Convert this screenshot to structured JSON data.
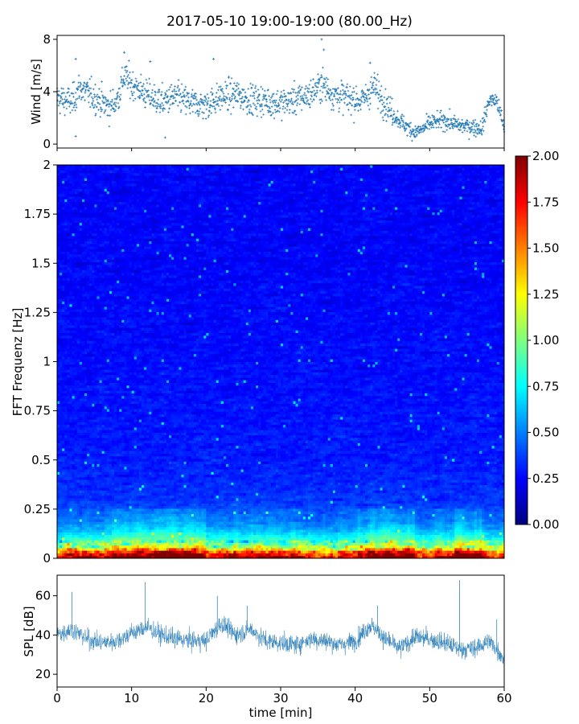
{
  "title": "2017-05-10 19:00-19:00 (80.00_Hz)",
  "colors": {
    "series": "#1f77b4",
    "colormap": [
      "#00007f",
      "#0000ff",
      "#007fff",
      "#00ffff",
      "#7fff7f",
      "#ffff00",
      "#ff7f00",
      "#ff0000",
      "#7f0000"
    ]
  },
  "chart_data": [
    {
      "type": "scatter",
      "name": "wind",
      "ylabel": "Wind [m/s]",
      "xlim": [
        0,
        60
      ],
      "ylim": [
        -0.3,
        8.3
      ],
      "yticks": [
        0,
        4,
        8
      ],
      "xticks": [
        0,
        10,
        20,
        30,
        40,
        50,
        60
      ],
      "marker": "+",
      "trend": {
        "x": [
          0,
          2,
          3,
          5,
          7,
          8,
          9,
          10,
          12,
          14,
          16,
          18,
          20,
          22,
          24,
          26,
          28,
          30,
          32,
          34,
          35.5,
          37,
          39,
          41,
          42.5,
          44,
          45,
          46,
          47,
          48,
          49,
          50,
          52,
          54,
          56,
          57,
          58,
          59,
          60
        ],
        "y": [
          3.5,
          3.2,
          4.3,
          3.6,
          2.8,
          3.3,
          5.2,
          4.6,
          3.8,
          3.2,
          3.6,
          3.1,
          3.0,
          3.6,
          3.8,
          3.4,
          3.3,
          3.1,
          3.4,
          3.8,
          4.6,
          3.8,
          3.5,
          3.3,
          4.4,
          3.2,
          2.3,
          1.8,
          1.3,
          0.9,
          1.1,
          1.6,
          1.8,
          1.4,
          1.3,
          1.2,
          3.4,
          3.3,
          1.2
        ]
      },
      "spikes": [
        [
          2.5,
          6.5
        ],
        [
          9,
          7.0
        ],
        [
          12.5,
          6.3
        ],
        [
          21,
          6.5
        ],
        [
          35.5,
          8.0
        ],
        [
          35.8,
          7.2
        ],
        [
          42,
          6.2
        ],
        [
          14.5,
          0.5
        ],
        [
          2.5,
          0.6
        ]
      ]
    },
    {
      "type": "heatmap",
      "name": "spectrogram",
      "ylabel": "FFT Frequenz [Hz]",
      "xlim": [
        0,
        60
      ],
      "ylim": [
        0,
        2
      ],
      "yticks": [
        0,
        0.25,
        0.5,
        0.75,
        1,
        1.25,
        1.5,
        1.75,
        2
      ],
      "ytick_labels": [
        "0",
        "0.25",
        "0.5",
        "0.75",
        "1",
        "1.25",
        "1.5",
        "1.75",
        "2"
      ],
      "colorbar": {
        "range": [
          0,
          2
        ],
        "ticks": [
          0.0,
          0.25,
          0.5,
          0.75,
          1.0,
          1.25,
          1.5,
          1.75,
          2.0
        ],
        "tick_labels": [
          "0.00",
          "0.25",
          "0.50",
          "0.75",
          "1.00",
          "1.25",
          "1.50",
          "1.75",
          "2.00"
        ]
      },
      "rows": 150,
      "cols": 180,
      "profile": {
        "freq_hz": [
          0,
          0.03,
          0.06,
          0.1,
          0.15,
          0.2,
          0.3,
          0.5,
          1.0,
          1.5,
          2.0
        ],
        "mean_amplitude": [
          1.85,
          1.5,
          1.0,
          0.75,
          0.55,
          0.45,
          0.35,
          0.3,
          0.27,
          0.25,
          0.25
        ]
      }
    },
    {
      "type": "line",
      "name": "spl",
      "ylabel": "SPL [dB]",
      "xlabel": "time [min]",
      "xlim": [
        0,
        60
      ],
      "ylim": [
        13.5,
        70.5
      ],
      "yticks": [
        20,
        40,
        60
      ],
      "xticks": [
        0,
        10,
        20,
        30,
        40,
        50,
        60
      ],
      "trend": {
        "x": [
          0,
          2,
          4,
          6,
          8,
          10,
          12,
          14,
          16,
          18,
          20,
          22,
          24,
          26,
          28,
          30,
          32,
          34,
          36,
          38,
          40,
          42,
          43,
          44,
          46,
          48,
          50,
          52,
          54,
          56,
          58,
          60
        ],
        "y": [
          40,
          43,
          38,
          36,
          37,
          41,
          44,
          40,
          38,
          37,
          37,
          46,
          40,
          43,
          37,
          36,
          35,
          38,
          37,
          35,
          37,
          45,
          42,
          38,
          33,
          39,
          38,
          36,
          33,
          33,
          37,
          28
        ]
      },
      "peaks": [
        [
          2,
          62
        ],
        [
          11.8,
          67
        ],
        [
          21.5,
          60
        ],
        [
          25.5,
          55
        ],
        [
          43,
          55
        ],
        [
          54,
          68
        ],
        [
          59,
          48
        ]
      ]
    }
  ]
}
